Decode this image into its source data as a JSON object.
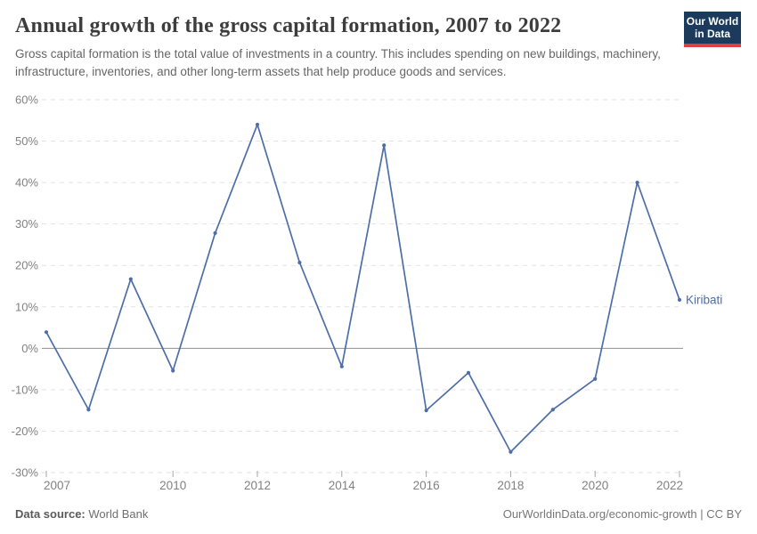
{
  "header": {
    "title": "Annual growth of the gross capital formation, 2007 to 2022",
    "subtitle": "Gross capital formation is the total value of investments in a country. This includes spending on new buildings, machinery, infrastructure, inventories, and other long-term assets that help produce goods and services.",
    "logo": {
      "line1": "Our World",
      "line2": "in Data",
      "bg_color": "#1b3a5c",
      "stripe_color": "#dc3e41"
    }
  },
  "chart_data": {
    "type": "line",
    "title": "Annual growth of the gross capital formation, 2007 to 2022",
    "x": [
      2007,
      2008,
      2009,
      2010,
      2011,
      2012,
      2013,
      2014,
      2015,
      2016,
      2017,
      2018,
      2019,
      2020,
      2021,
      2022
    ],
    "series": [
      {
        "name": "Kiribati",
        "color": "#4d6ea7",
        "values": [
          3.9,
          -14.8,
          16.7,
          -5.4,
          27.8,
          54,
          20.7,
          -4.4,
          49,
          -15,
          -5.9,
          -25,
          -14.8,
          -7.4,
          40,
          11.7
        ]
      }
    ],
    "ylim": [
      -30,
      60
    ],
    "yticks": [
      {
        "value": 60,
        "label": "60%"
      },
      {
        "value": 50,
        "label": "50%"
      },
      {
        "value": 40,
        "label": "40%"
      },
      {
        "value": 30,
        "label": "30%"
      },
      {
        "value": 20,
        "label": "20%"
      },
      {
        "value": 10,
        "label": "10%"
      },
      {
        "value": 0,
        "label": "0%"
      },
      {
        "value": -10,
        "label": "-10%"
      },
      {
        "value": -20,
        "label": "-20%"
      },
      {
        "value": -30,
        "label": "-30%"
      }
    ],
    "xticks": [
      {
        "value": 2007,
        "label": "2007"
      },
      {
        "value": 2010,
        "label": "2010"
      },
      {
        "value": 2012,
        "label": "2012"
      },
      {
        "value": 2014,
        "label": "2014"
      },
      {
        "value": 2016,
        "label": "2016"
      },
      {
        "value": 2018,
        "label": "2018"
      },
      {
        "value": 2020,
        "label": "2020"
      },
      {
        "value": 2022,
        "label": "2022"
      }
    ],
    "grid": "horizontal-dashed",
    "legend_position": "end-of-line-label",
    "entity_label": "Kiribati"
  },
  "axis": {
    "label_color": "#818181",
    "grid_color": "#e2e2e2",
    "zero_line_color": "#8f8f8f",
    "tick_color": "#a6a6a6"
  },
  "footer": {
    "source_label": "Data source:",
    "source_value": "World Bank",
    "credit": "OurWorldinData.org/economic-growth | CC BY"
  }
}
